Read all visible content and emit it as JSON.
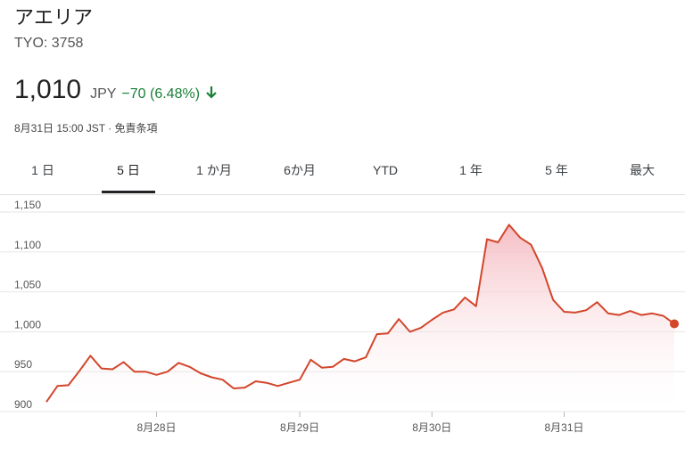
{
  "stock": {
    "name": "アエリア",
    "ticker": "TYO: 3758",
    "price": "1,010",
    "currency": "JPY",
    "change": "−70 (6.48%)",
    "direction": "down",
    "timestamp": "8月31日 15:00 JST · 免責条項"
  },
  "tabs": [
    {
      "label": "1 日",
      "active": false
    },
    {
      "label": "5 日",
      "active": true
    },
    {
      "label": "1 か月",
      "active": false
    },
    {
      "label": "6か月",
      "active": false
    },
    {
      "label": "YTD",
      "active": false
    },
    {
      "label": "1 年",
      "active": false
    },
    {
      "label": "5 年",
      "active": false
    },
    {
      "label": "最大",
      "active": false
    }
  ],
  "colors": {
    "line": "#d2462b",
    "fill": "#f4b6bd",
    "gain_loss": "#188038",
    "grid": "#e6e6e6"
  },
  "chart_data": {
    "type": "area",
    "ylim": [
      900,
      1150
    ],
    "ytick_labels": [
      "1,150",
      "1,100",
      "1,050",
      "1,000",
      "950",
      "900"
    ],
    "yticks": [
      1150,
      1100,
      1050,
      1000,
      950,
      900
    ],
    "x_labels": [
      "8月28日",
      "8月29日",
      "8月30日",
      "8月31日"
    ],
    "x_label_positions": [
      10,
      23,
      35,
      47
    ],
    "values": [
      912,
      932,
      933,
      951,
      970,
      954,
      953,
      962,
      950,
      950,
      946,
      950,
      961,
      956,
      948,
      943,
      940,
      929,
      930,
      938,
      936,
      932,
      936,
      940,
      965,
      955,
      956,
      966,
      963,
      968,
      997,
      998,
      1016,
      1000,
      1005,
      1015,
      1024,
      1028,
      1043,
      1032,
      1116,
      1112,
      1134,
      1118,
      1109,
      1080,
      1040,
      1025,
      1024,
      1027,
      1037,
      1023,
      1021,
      1026,
      1021,
      1023,
      1020,
      1010
    ]
  }
}
